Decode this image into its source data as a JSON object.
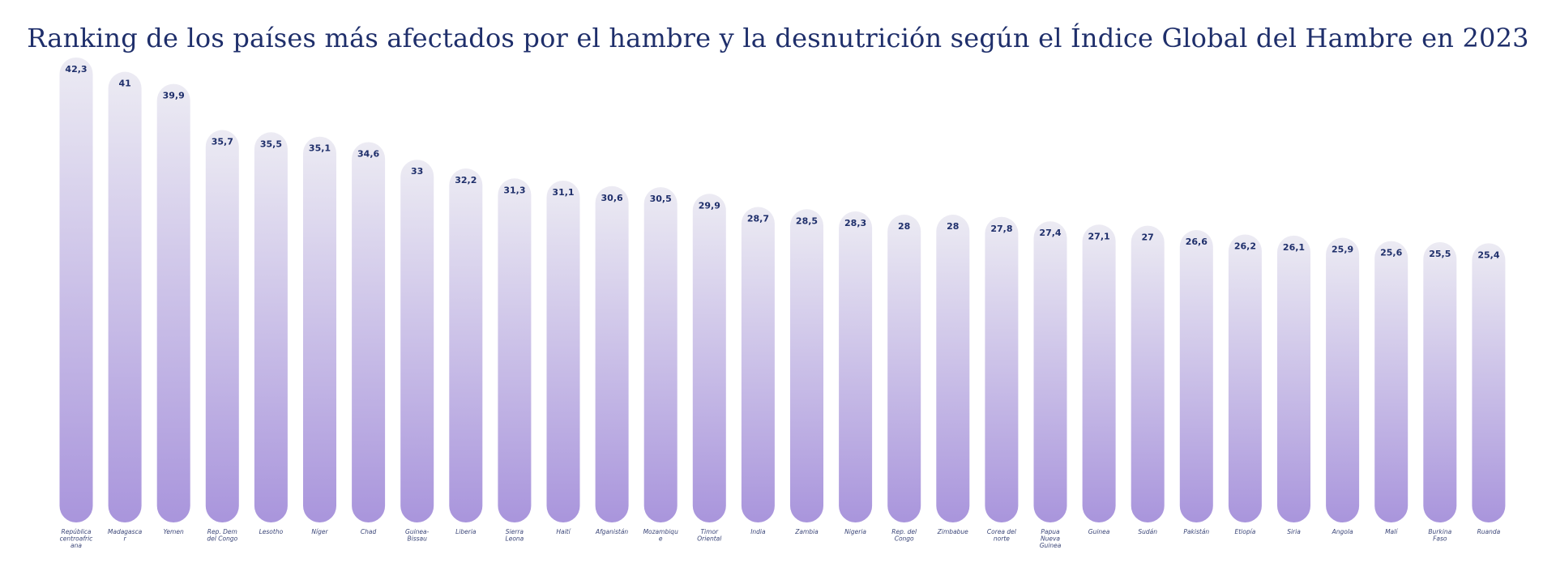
{
  "chart_data": {
    "type": "bar",
    "title": "Ranking de los países más afectados por el hambre y la desnutrición según el Índice Global del Hambre en 2023",
    "xlabel": "",
    "ylabel": "",
    "ylim": [
      0,
      42.3
    ],
    "grid": false,
    "legend": "none",
    "categories": [
      "República centroafricana",
      "Madagascar",
      "Yemen",
      "Rep. Dem del Congo",
      "Lesotho",
      "Níger",
      "Chad",
      "Guinea-Bissau",
      "Liberia",
      "Sierra Leona",
      "Haití",
      "Afganistán",
      "Mozambique",
      "Timor Oriental",
      "India",
      "Zambia",
      "Nigeria",
      "Rep. del Congo",
      "Zimbabue",
      "Corea del norte",
      "Papua Nueva Guinea",
      "Guinea",
      "Sudán",
      "Pakistán",
      "Etiopía",
      "Siria",
      "Angola",
      "Malí",
      "Burkina Faso",
      "Ruanda"
    ],
    "values": [
      42.3,
      41,
      39.9,
      35.7,
      35.5,
      35.1,
      34.6,
      33,
      32.2,
      31.3,
      31.1,
      30.6,
      30.5,
      29.9,
      28.7,
      28.5,
      28.3,
      28,
      28,
      27.8,
      27.4,
      27.1,
      27,
      26.6,
      26.2,
      26.1,
      25.9,
      25.6,
      25.5,
      25.4
    ],
    "value_labels": [
      "42,3",
      "41",
      "39,9",
      "35,7",
      "35,5",
      "35,1",
      "34,6",
      "33",
      "32,2",
      "31,3",
      "31,1",
      "30,6",
      "30,5",
      "29,9",
      "28,7",
      "28,5",
      "28,3",
      "28",
      "28",
      "27,8",
      "27,4",
      "27,1",
      "27",
      "26,6",
      "26,2",
      "26,1",
      "25,9",
      "25,6",
      "25,5",
      "25,4"
    ],
    "category_label_lines": [
      [
        "República",
        "centroafric",
        "ana"
      ],
      [
        "Madagasca",
        "r"
      ],
      [
        "Yemen"
      ],
      [
        "Rep. Dem",
        "del Congo"
      ],
      [
        "Lesotho"
      ],
      [
        "Níger"
      ],
      [
        "Chad"
      ],
      [
        "Guinea-",
        "Bissau"
      ],
      [
        "Liberia"
      ],
      [
        "Sierra",
        "Leona"
      ],
      [
        "Haití"
      ],
      [
        "Afganistán"
      ],
      [
        "Mozambiqu",
        "e"
      ],
      [
        "Timor",
        "Oriental"
      ],
      [
        "India"
      ],
      [
        "Zambia"
      ],
      [
        "Nigeria"
      ],
      [
        "Rep. del",
        "Congo"
      ],
      [
        "Zimbabue"
      ],
      [
        "Corea del",
        "norte"
      ],
      [
        "Papua",
        "Nueva",
        "Guinea"
      ],
      [
        "Guinea"
      ],
      [
        "Sudán"
      ],
      [
        "Pakistán"
      ],
      [
        "Etiopía"
      ],
      [
        "Siria"
      ],
      [
        "Angola"
      ],
      [
        "Malí"
      ],
      [
        "Burkina",
        "Faso"
      ],
      [
        "Ruanda"
      ]
    ],
    "colors": {
      "title": "#1f2f6b",
      "value_text": "#1f2f6b",
      "label_text": "#3b4678",
      "bar_top": "#ecebf3",
      "bar_bottom": "#a995dc"
    }
  }
}
